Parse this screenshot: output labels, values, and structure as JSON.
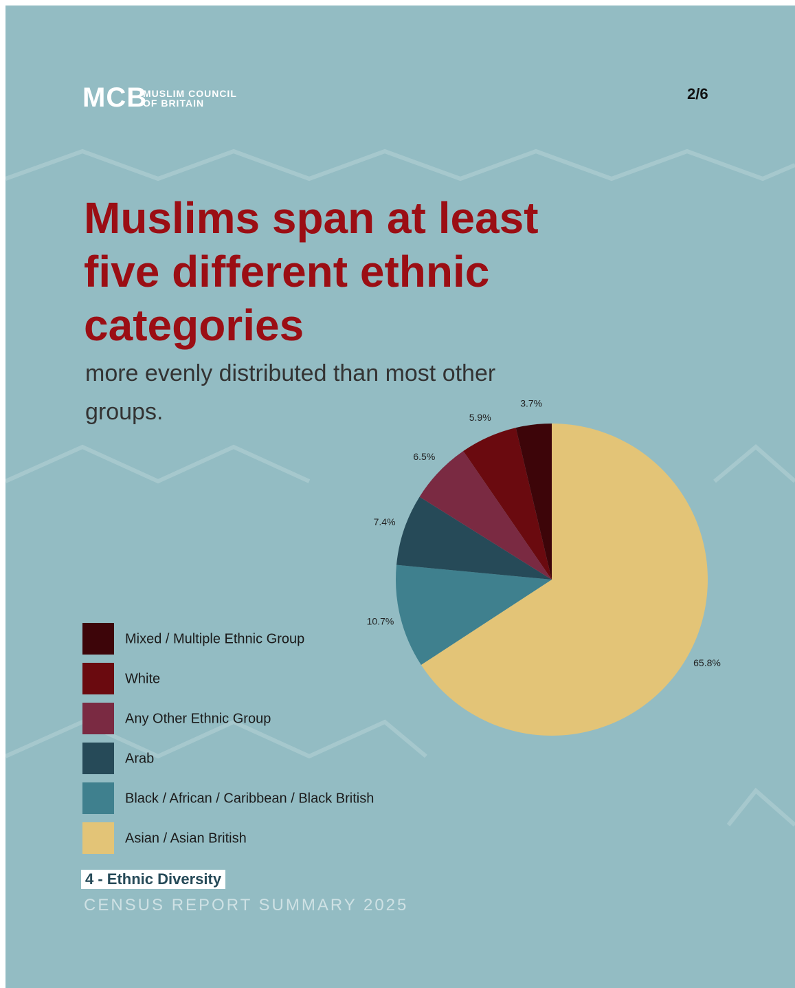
{
  "header": {
    "logo_mark": "MCB",
    "logo_line1": "MUSLIM COUNCIL",
    "logo_line2": "OF BRITAIN",
    "page": "2/6"
  },
  "headline": "Muslims span at least five different ethnic categories",
  "subheadline": "more evenly distributed than most other groups.",
  "chart_data": {
    "type": "pie",
    "categories": [
      "Mixed / Multiple Ethnic Group",
      "White",
      "Any Other Ethnic Group",
      "Arab",
      "Black / African / Caribbean / Black British",
      "Asian / Asian British"
    ],
    "values": [
      3.7,
      5.9,
      6.5,
      7.4,
      10.7,
      65.8
    ],
    "value_labels": [
      "3.7%",
      "5.9%",
      "6.5%",
      "7.4%",
      "10.7%",
      "65.8%"
    ],
    "colors": [
      "#3d0509",
      "#6a0a0f",
      "#7a2a42",
      "#264a58",
      "#3f808e",
      "#e3c477"
    ]
  },
  "footer": {
    "section": "4 - Ethnic Diversity",
    "report": "CENSUS REPORT SUMMARY 2025"
  }
}
